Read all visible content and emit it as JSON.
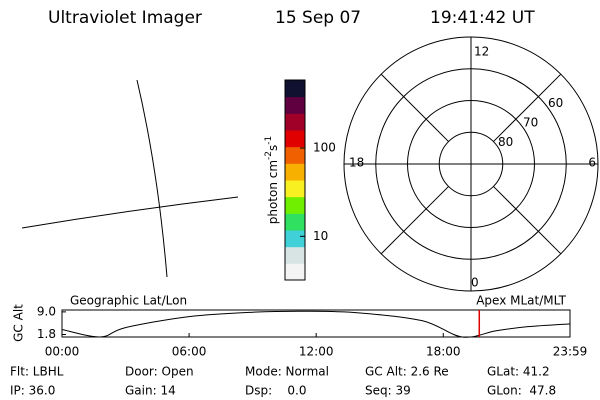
{
  "header": {
    "title": "Ultraviolet Imager",
    "date": "15 Sep 07",
    "time": "19:41:42 UT"
  },
  "colorbar": {
    "label": "photon cm",
    "exp1": "-2",
    "unit2": "s",
    "exp2": "-1",
    "log": true,
    "lim": [
      3.2,
      590
    ],
    "ticks": [
      10,
      100
    ],
    "colors": [
      "#f4f4f4",
      "#d8e4e4",
      "#40d0d8",
      "#30e060",
      "#70f000",
      "#f8f020",
      "#f8b000",
      "#f06000",
      "#e00000",
      "#a00028",
      "#600040",
      "#101030"
    ]
  },
  "chart_data": [
    {
      "type": "polar",
      "rlim": [
        90,
        50
      ],
      "rticks": [
        80,
        70,
        60
      ],
      "mlt_labels": [
        "12",
        "18",
        "6",
        "0"
      ]
    },
    {
      "type": "line",
      "title_left": "Geographic Lat/Lon",
      "title_right": "Apex MLat/MLT",
      "ylabel": "GC Alt",
      "x": [
        0,
        1.8,
        3,
        6,
        9,
        11.5,
        14,
        17,
        18.9,
        20.5,
        22,
        23.983
      ],
      "values": [
        3.4,
        1.0,
        4.0,
        7.5,
        8.9,
        9.2,
        8.7,
        6.2,
        1.0,
        3.0,
        4.3,
        5.2
      ],
      "color": "#000000",
      "xlim": [
        0,
        23.983
      ],
      "ylim": [
        1.0,
        9.6
      ],
      "xticks": [
        {
          "value": 0,
          "label": "00:00"
        },
        {
          "value": 6,
          "label": "06:00"
        },
        {
          "value": 12,
          "label": "12:00"
        },
        {
          "value": 18,
          "label": "18:00"
        },
        {
          "value": 23.983,
          "label": "23:59"
        }
      ],
      "yticks": [
        {
          "value": 9,
          "label": "9.0"
        },
        1.8
      ],
      "marker_x": 19.7,
      "marker_color": "#e00000"
    }
  ],
  "footer": {
    "rows": [
      [
        "Flt: LBHL",
        "Door: Open",
        "Mode: Normal",
        "GC Alt: 2.6 Re",
        "GLat: 41.2"
      ],
      [
        "IP: 36.0",
        "Gain: 14",
        "Dsp:    0.0",
        "Seq: 39",
        "GLon:  47.8"
      ]
    ]
  }
}
